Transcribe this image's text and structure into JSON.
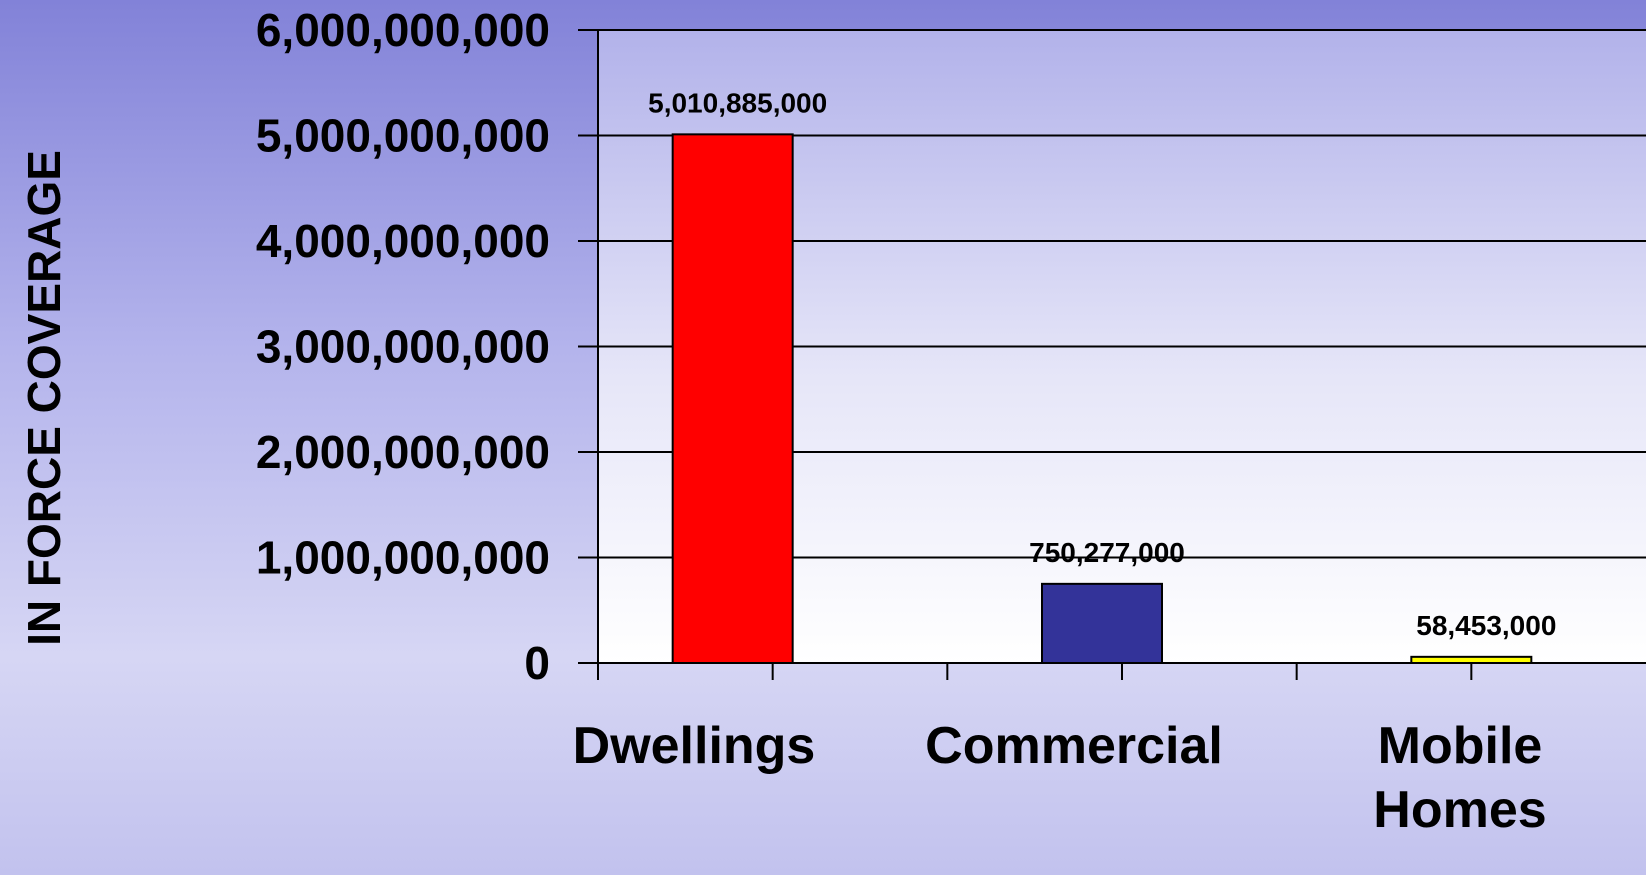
{
  "chart_data": {
    "type": "bar",
    "title": "",
    "xlabel": "",
    "ylabel": "IN FORCE COVERAGE",
    "categories": [
      "Dwellings",
      "Commercial",
      "Mobile Homes"
    ],
    "values": [
      5010885000,
      750277000,
      58453000
    ],
    "data_labels": [
      "5,010,885,000",
      "750,277,000",
      "58,453,000"
    ],
    "bar_colors": [
      "#ff0000",
      "#333399",
      "#ffff00"
    ],
    "ylim": [
      0,
      6000000000
    ],
    "yticks": [
      0,
      1000000000,
      2000000000,
      3000000000,
      4000000000,
      5000000000,
      6000000000
    ],
    "ytick_labels": [
      "0",
      "1,000,000,000",
      "2,000,000,000",
      "3,000,000,000",
      "4,000,000,000",
      "5,000,000,000",
      "6,000,000,000"
    ],
    "plot_background": "gradient-lavender-to-white",
    "grid": true,
    "legend": "none"
  }
}
